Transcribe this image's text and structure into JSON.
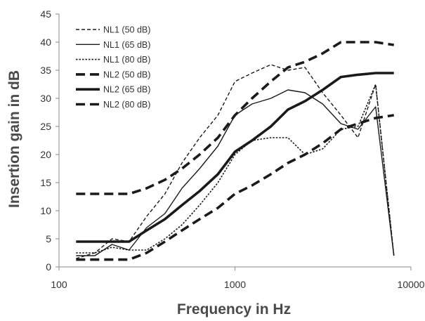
{
  "chart_data": {
    "type": "line",
    "title": "",
    "xlabel": "Frequency in Hz",
    "ylabel": "Insertion gain in dB",
    "x_scale": "log",
    "xlim": [
      100,
      10000
    ],
    "ylim": [
      0,
      45
    ],
    "x_ticks": [
      "100",
      "1000",
      "10000"
    ],
    "y_ticks": [
      "0",
      "5",
      "10",
      "15",
      "20",
      "25",
      "30",
      "35",
      "40",
      "45"
    ],
    "grid": false,
    "legend_position": "top-left",
    "series": [
      {
        "name": "NL1 (50 dB)",
        "style": "thin-dashed",
        "x": [
          125,
          160,
          200,
          250,
          315,
          400,
          500,
          630,
          800,
          1000,
          1250,
          1600,
          2000,
          2500,
          3150,
          4000,
          5000,
          6300,
          8000
        ],
        "y": [
          1.5,
          2.5,
          5,
          4.5,
          9,
          13,
          18.5,
          23,
          27,
          33,
          34.5,
          36,
          35,
          35.5,
          31,
          27,
          23,
          32.5,
          2
        ]
      },
      {
        "name": "NL1 (65 dB)",
        "style": "thin-solid",
        "x": [
          125,
          160,
          200,
          250,
          315,
          400,
          500,
          630,
          800,
          1000,
          1250,
          1600,
          2000,
          2500,
          3150,
          4000,
          5000,
          6300,
          8000
        ],
        "y": [
          2,
          2,
          4,
          3,
          7,
          9.5,
          14,
          17.5,
          21.5,
          27,
          29,
          30,
          31.5,
          31,
          29,
          25.5,
          24.5,
          28.5,
          2
        ]
      },
      {
        "name": "NL1 (80 dB)",
        "style": "thin-dotted",
        "x": [
          125,
          160,
          200,
          250,
          315,
          400,
          500,
          630,
          800,
          1000,
          1250,
          1600,
          2000,
          2500,
          3150,
          4000,
          5000,
          6300,
          8000
        ],
        "y": [
          2.5,
          2.5,
          3.5,
          3,
          3,
          5,
          7.5,
          11,
          15,
          20,
          22.5,
          23,
          23,
          20,
          21,
          24.5,
          25,
          32.5,
          2
        ]
      },
      {
        "name": "NL2 (50 dB)",
        "style": "thick-dashed",
        "x": [
          125,
          160,
          200,
          250,
          315,
          400,
          500,
          630,
          800,
          1000,
          1250,
          1600,
          2000,
          2500,
          3150,
          4000,
          5000,
          6300,
          8000
        ],
        "y": [
          13,
          13,
          13,
          13,
          14,
          15.5,
          17.5,
          20,
          23,
          27,
          30,
          33,
          35.5,
          36.5,
          38,
          40,
          40,
          40,
          39.5
        ]
      },
      {
        "name": "NL2 (65 dB)",
        "style": "thick-solid",
        "x": [
          125,
          160,
          200,
          250,
          315,
          400,
          500,
          630,
          800,
          1000,
          1250,
          1600,
          2000,
          2500,
          3150,
          4000,
          5000,
          6300,
          8000
        ],
        "y": [
          4.5,
          4.5,
          4.5,
          4.5,
          6.5,
          8.5,
          11,
          13.5,
          16.5,
          20.5,
          22.5,
          25,
          28,
          29.5,
          31.5,
          33.8,
          34.2,
          34.5,
          34.5
        ]
      },
      {
        "name": "NL2 (80 dB)",
        "style": "thick-dashed",
        "x": [
          125,
          160,
          200,
          250,
          315,
          400,
          500,
          630,
          800,
          1000,
          1250,
          1600,
          2000,
          2500,
          3150,
          4000,
          5000,
          6300,
          8000
        ],
        "y": [
          1.3,
          1.3,
          1.3,
          1.3,
          2.5,
          4.5,
          6.5,
          8.5,
          10.5,
          13,
          14.5,
          16.5,
          18.5,
          20,
          22,
          24.5,
          25.5,
          26.5,
          27
        ]
      }
    ]
  }
}
